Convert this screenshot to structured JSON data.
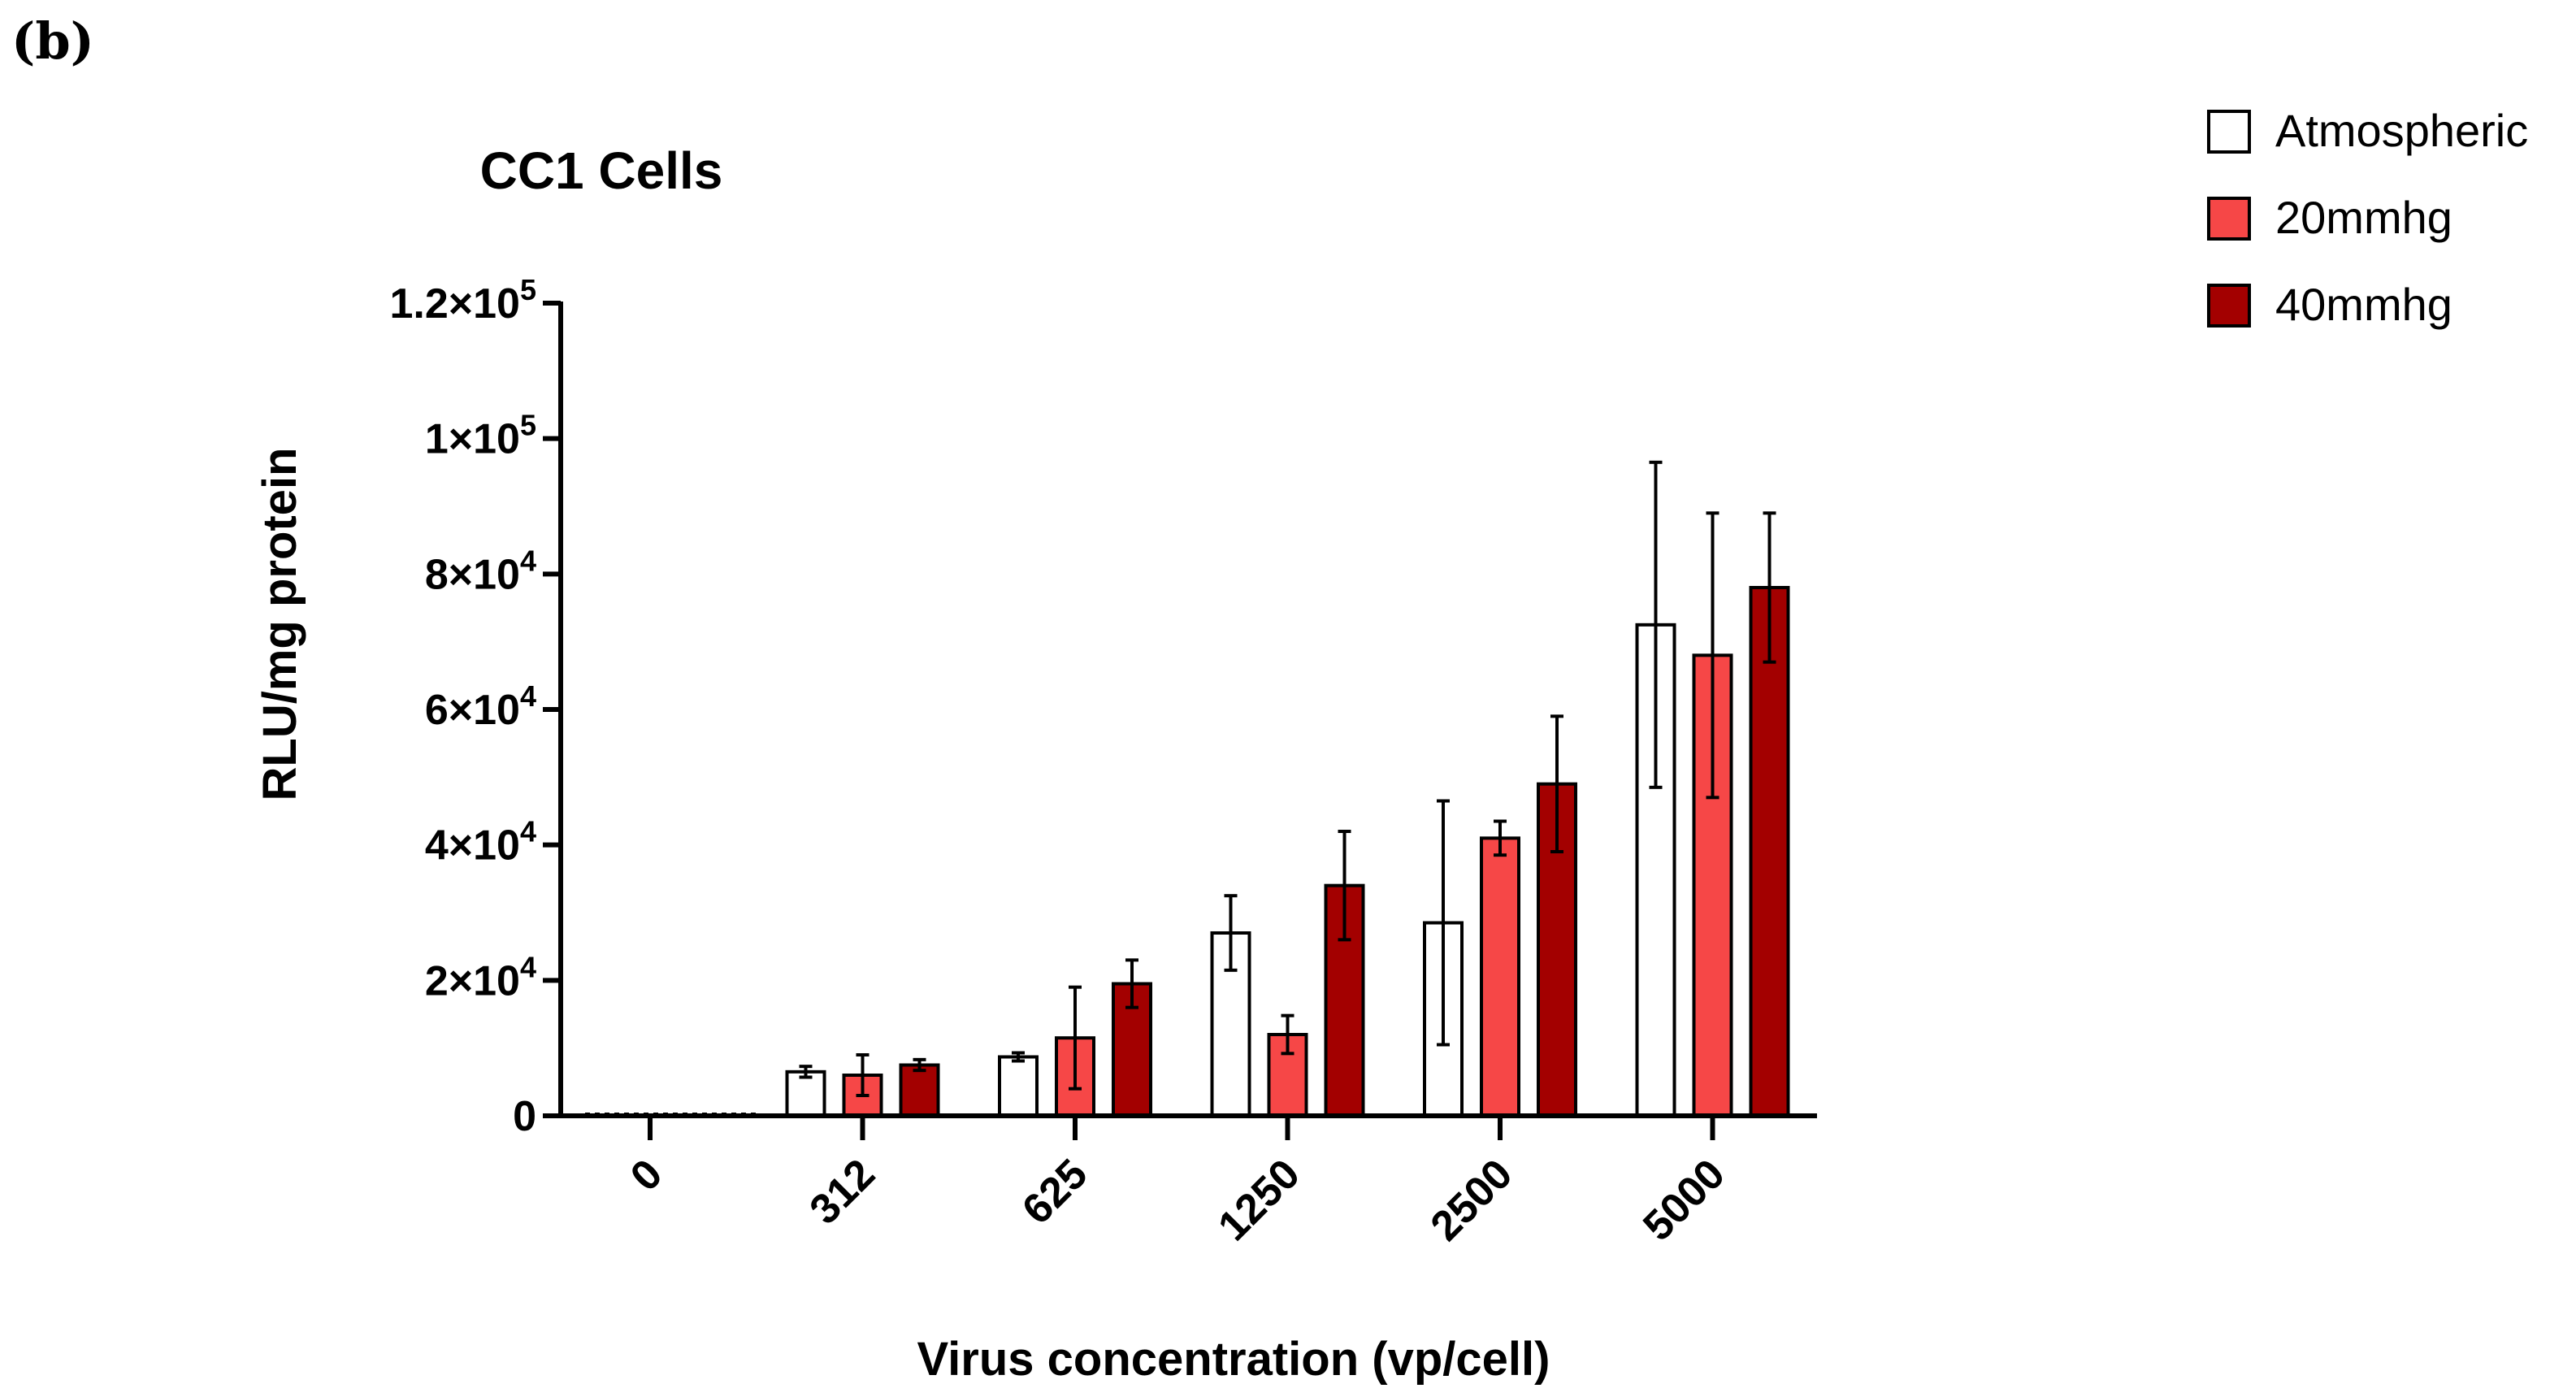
{
  "panel_label": "(b)",
  "chart_data": {
    "type": "bar",
    "title": "CC1 Cells",
    "xlabel": "Virus concentration (vp/cell)",
    "ylabel": "RLU/mg protein",
    "ylim": [
      0,
      120000
    ],
    "categories": [
      "0",
      "312",
      "625",
      "1250",
      "2500",
      "5000"
    ],
    "yticks": [
      {
        "value": 0,
        "base": "0",
        "exp": ""
      },
      {
        "value": 20000,
        "base": "2×10",
        "exp": "4"
      },
      {
        "value": 40000,
        "base": "4×10",
        "exp": "4"
      },
      {
        "value": 60000,
        "base": "6×10",
        "exp": "4"
      },
      {
        "value": 80000,
        "base": "8×10",
        "exp": "4"
      },
      {
        "value": 100000,
        "base": "1×10",
        "exp": "5"
      },
      {
        "value": 120000,
        "base": "1.2×10",
        "exp": "5"
      }
    ],
    "series": [
      {
        "name": "Atmospheric",
        "color": "#ffffff",
        "values": [
          0,
          6500,
          8700,
          27000,
          28500,
          72500
        ],
        "errors": [
          0,
          800,
          600,
          5500,
          18000,
          24000
        ]
      },
      {
        "name": "20mmhg",
        "color": "#f64747",
        "values": [
          0,
          6000,
          11500,
          12000,
          41000,
          68000
        ],
        "errors": [
          0,
          3000,
          7500,
          2800,
          2500,
          21000
        ]
      },
      {
        "name": "40mmhg",
        "color": "#a30000",
        "values": [
          0,
          7500,
          19500,
          34000,
          49000,
          78000
        ],
        "errors": [
          0,
          800,
          3500,
          8000,
          10000,
          11000
        ]
      }
    ],
    "legend_position": "top-right"
  }
}
